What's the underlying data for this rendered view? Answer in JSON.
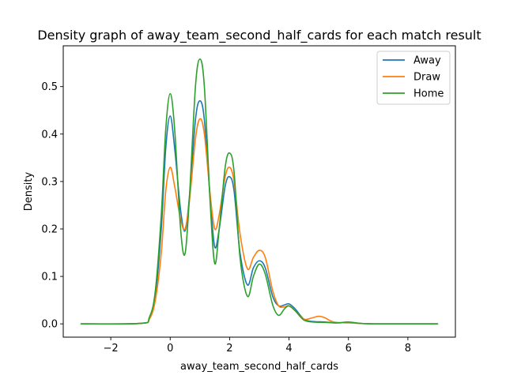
{
  "chart_data": {
    "type": "line",
    "title": "Density graph of away_team_second_half_cards for each match result",
    "xlabel": "away_team_second_half_cards",
    "ylabel": "Density",
    "xlim": [
      -3.6,
      9.6
    ],
    "ylim": [
      -0.028,
      0.586
    ],
    "xticks": [
      -2,
      0,
      2,
      4,
      6,
      8
    ],
    "xtick_labels": [
      "−2",
      "0",
      "2",
      "4",
      "6",
      "8"
    ],
    "yticks": [
      0.0,
      0.1,
      0.2,
      0.3,
      0.4,
      0.5
    ],
    "ytick_labels": [
      "0.0",
      "0.1",
      "0.2",
      "0.3",
      "0.4",
      "0.5"
    ],
    "grid": false,
    "legend_position": "top-right",
    "series": [
      {
        "name": "Away",
        "color": "#1f77b4",
        "points": [
          [
            -3,
            0
          ],
          [
            -1,
            0.001
          ],
          [
            -0.7,
            0.012
          ],
          [
            -0.5,
            0.06
          ],
          [
            -0.3,
            0.2
          ],
          [
            -0.15,
            0.37
          ],
          [
            0,
            0.438
          ],
          [
            0.15,
            0.37
          ],
          [
            0.35,
            0.24
          ],
          [
            0.5,
            0.196
          ],
          [
            0.65,
            0.27
          ],
          [
            0.85,
            0.43
          ],
          [
            1,
            0.47
          ],
          [
            1.15,
            0.43
          ],
          [
            1.35,
            0.26
          ],
          [
            1.5,
            0.162
          ],
          [
            1.65,
            0.2
          ],
          [
            1.85,
            0.29
          ],
          [
            2,
            0.31
          ],
          [
            2.15,
            0.28
          ],
          [
            2.35,
            0.15
          ],
          [
            2.6,
            0.082
          ],
          [
            2.8,
            0.118
          ],
          [
            3,
            0.133
          ],
          [
            3.2,
            0.118
          ],
          [
            3.45,
            0.058
          ],
          [
            3.65,
            0.038
          ],
          [
            3.85,
            0.04
          ],
          [
            4,
            0.042
          ],
          [
            4.2,
            0.032
          ],
          [
            4.5,
            0.01
          ],
          [
            4.8,
            0.005
          ],
          [
            5.2,
            0.004
          ],
          [
            5.6,
            0.002
          ],
          [
            6,
            0.003
          ],
          [
            6.4,
            0.001
          ],
          [
            7,
            0
          ],
          [
            9,
            0
          ]
        ]
      },
      {
        "name": "Draw",
        "color": "#ff7f0e",
        "points": [
          [
            -3,
            0
          ],
          [
            -1,
            0.001
          ],
          [
            -0.7,
            0.01
          ],
          [
            -0.5,
            0.05
          ],
          [
            -0.3,
            0.15
          ],
          [
            -0.15,
            0.28
          ],
          [
            0,
            0.33
          ],
          [
            0.15,
            0.29
          ],
          [
            0.35,
            0.22
          ],
          [
            0.5,
            0.2
          ],
          [
            0.65,
            0.26
          ],
          [
            0.85,
            0.39
          ],
          [
            1,
            0.432
          ],
          [
            1.15,
            0.4
          ],
          [
            1.35,
            0.27
          ],
          [
            1.5,
            0.2
          ],
          [
            1.65,
            0.23
          ],
          [
            1.85,
            0.31
          ],
          [
            2,
            0.33
          ],
          [
            2.15,
            0.3
          ],
          [
            2.35,
            0.19
          ],
          [
            2.6,
            0.116
          ],
          [
            2.8,
            0.14
          ],
          [
            3,
            0.155
          ],
          [
            3.2,
            0.14
          ],
          [
            3.45,
            0.07
          ],
          [
            3.65,
            0.038
          ],
          [
            3.85,
            0.036
          ],
          [
            4,
            0.038
          ],
          [
            4.2,
            0.028
          ],
          [
            4.5,
            0.01
          ],
          [
            4.8,
            0.013
          ],
          [
            5,
            0.016
          ],
          [
            5.2,
            0.013
          ],
          [
            5.5,
            0.004
          ],
          [
            6,
            0.002
          ],
          [
            6.4,
            0.001
          ],
          [
            7,
            0
          ],
          [
            9,
            0
          ]
        ]
      },
      {
        "name": "Home",
        "color": "#2ca02c",
        "points": [
          [
            -3,
            0
          ],
          [
            -1,
            0.001
          ],
          [
            -0.7,
            0.014
          ],
          [
            -0.5,
            0.07
          ],
          [
            -0.3,
            0.23
          ],
          [
            -0.15,
            0.41
          ],
          [
            0,
            0.485
          ],
          [
            0.15,
            0.41
          ],
          [
            0.35,
            0.2
          ],
          [
            0.5,
            0.148
          ],
          [
            0.65,
            0.27
          ],
          [
            0.85,
            0.5
          ],
          [
            1,
            0.558
          ],
          [
            1.15,
            0.5
          ],
          [
            1.35,
            0.25
          ],
          [
            1.5,
            0.127
          ],
          [
            1.65,
            0.2
          ],
          [
            1.85,
            0.33
          ],
          [
            2,
            0.36
          ],
          [
            2.15,
            0.32
          ],
          [
            2.35,
            0.14
          ],
          [
            2.6,
            0.058
          ],
          [
            2.8,
            0.1
          ],
          [
            3,
            0.126
          ],
          [
            3.2,
            0.105
          ],
          [
            3.45,
            0.04
          ],
          [
            3.65,
            0.018
          ],
          [
            3.85,
            0.032
          ],
          [
            4,
            0.038
          ],
          [
            4.2,
            0.028
          ],
          [
            4.5,
            0.008
          ],
          [
            4.8,
            0.004
          ],
          [
            5.2,
            0.003
          ],
          [
            5.6,
            0.002
          ],
          [
            6,
            0.004
          ],
          [
            6.4,
            0.001
          ],
          [
            7,
            0
          ],
          [
            9,
            0
          ]
        ]
      }
    ]
  }
}
